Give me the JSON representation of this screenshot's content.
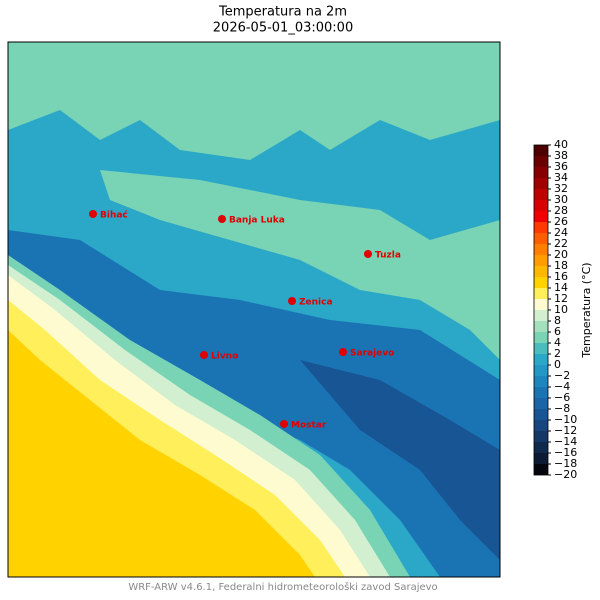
{
  "title": "Temperatura na 2m",
  "subtitle": "2026-05-01_03:00:00",
  "cities": [
    "Bihać",
    "Banja Luka",
    "Tuzla",
    "Zenica",
    "Livno",
    "Sarajevo",
    "Mostar"
  ],
  "colorbar": {
    "label": "Temperatura (°C)",
    "ticks": [
      {
        "value": -20,
        "label": "−20"
      },
      {
        "value": -18,
        "label": "−18"
      },
      {
        "value": -16,
        "label": "−16"
      },
      {
        "value": -14,
        "label": "−14"
      },
      {
        "value": -12,
        "label": "−12"
      },
      {
        "value": -10,
        "label": "−10"
      },
      {
        "value": -8,
        "label": "−8"
      },
      {
        "value": -6,
        "label": "−6"
      },
      {
        "value": -4,
        "label": "−4"
      },
      {
        "value": -2,
        "label": "−2"
      },
      0,
      2,
      4,
      6,
      8,
      10,
      12,
      14,
      16,
      18,
      20,
      22,
      24,
      26,
      28,
      30,
      32,
      34,
      36,
      38,
      40
    ],
    "colors": [
      "#05050f",
      "#0d1a33",
      "#102a4d",
      "#133866",
      "#16467f",
      "#185595",
      "#1a64a8",
      "#1a74b4",
      "#1d86bf",
      "#2398c6",
      "#2ba8c8",
      "#4cbdbf",
      "#79d3b5",
      "#a4e0bd",
      "#d2f0d0",
      "#fffbd0",
      "#ffef5a",
      "#ffd200",
      "#ffb800",
      "#ff9c00",
      "#ff7f00",
      "#ff5e00",
      "#ff3a00",
      "#f20000",
      "#d80000",
      "#bd0000",
      "#a00000",
      "#850000",
      "#6a0000",
      "#4d0000"
    ]
  },
  "footer": "WRF-ARW v4.6.1, Federalni hidrometeorološki zavod Sarajevo"
}
